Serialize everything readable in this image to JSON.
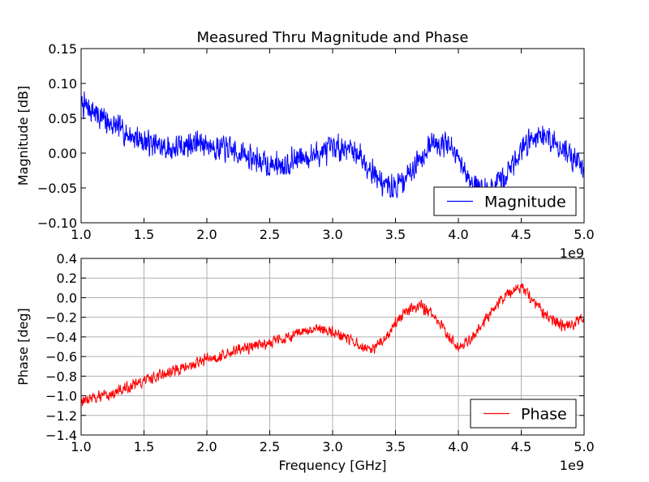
{
  "figure": {
    "title": "Measured Thru Magnitude and Phase"
  },
  "chart_data": [
    {
      "type": "line",
      "title": "Measured Thru Magnitude and Phase",
      "xlabel": "",
      "ylabel": "Magnitude [dB]",
      "xlim": [
        1.0,
        5.0
      ],
      "ylim": [
        -0.1,
        0.15
      ],
      "x_ticks": [
        "1.0",
        "1.5",
        "2.0",
        "2.5",
        "3.0",
        "3.5",
        "4.0",
        "4.5",
        "5.0"
      ],
      "y_ticks": [
        "0.15",
        "0.10",
        "0.05",
        "0.00",
        "−0.05",
        "−0.10"
      ],
      "x_exponent_label": "1e9",
      "grid": false,
      "legend": {
        "position": "lower-right",
        "entries": [
          "Magnitude"
        ]
      },
      "series": [
        {
          "name": "Magnitude",
          "color": "#0000ff",
          "noise_amplitude": 0.022,
          "points": [
            [
              1.0,
              0.07
            ],
            [
              1.1,
              0.06
            ],
            [
              1.2,
              0.045
            ],
            [
              1.3,
              0.035
            ],
            [
              1.4,
              0.025
            ],
            [
              1.5,
              0.018
            ],
            [
              1.6,
              0.01
            ],
            [
              1.7,
              0.005
            ],
            [
              1.8,
              0.01
            ],
            [
              1.9,
              0.015
            ],
            [
              2.0,
              0.013
            ],
            [
              2.1,
              0.008
            ],
            [
              2.2,
              0.003
            ],
            [
              2.3,
              -0.003
            ],
            [
              2.4,
              -0.01
            ],
            [
              2.5,
              -0.018
            ],
            [
              2.6,
              -0.015
            ],
            [
              2.7,
              -0.01
            ],
            [
              2.8,
              -0.005
            ],
            [
              2.9,
              0.0
            ],
            [
              3.0,
              0.005
            ],
            [
              3.1,
              0.01
            ],
            [
              3.2,
              0.0
            ],
            [
              3.3,
              -0.02
            ],
            [
              3.4,
              -0.045
            ],
            [
              3.5,
              -0.05
            ],
            [
              3.6,
              -0.03
            ],
            [
              3.7,
              -0.005
            ],
            [
              3.8,
              0.015
            ],
            [
              3.9,
              0.015
            ],
            [
              4.0,
              -0.01
            ],
            [
              4.1,
              -0.04
            ],
            [
              4.2,
              -0.055
            ],
            [
              4.3,
              -0.05
            ],
            [
              4.4,
              -0.025
            ],
            [
              4.5,
              0.005
            ],
            [
              4.6,
              0.025
            ],
            [
              4.7,
              0.025
            ],
            [
              4.8,
              0.01
            ],
            [
              4.9,
              -0.005
            ],
            [
              5.0,
              -0.02
            ]
          ]
        }
      ]
    },
    {
      "type": "line",
      "title": "",
      "xlabel": "Frequency [GHz]",
      "ylabel": "Phase [deg]",
      "xlim": [
        1.0,
        5.0
      ],
      "ylim": [
        -1.4,
        0.4
      ],
      "x_ticks": [
        "1.0",
        "1.5",
        "2.0",
        "2.5",
        "3.0",
        "3.5",
        "4.0",
        "4.5",
        "5.0"
      ],
      "y_ticks": [
        "0.4",
        "0.2",
        "0.0",
        "−0.2",
        "−0.4",
        "−0.6",
        "−0.8",
        "−1.0",
        "−1.2",
        "−1.4"
      ],
      "x_exponent_label": "1e9",
      "grid": true,
      "legend": {
        "position": "lower-right",
        "entries": [
          "Phase"
        ]
      },
      "series": [
        {
          "name": "Phase",
          "color": "#ff0000",
          "noise_amplitude": 0.07,
          "points": [
            [
              1.0,
              -1.05
            ],
            [
              1.1,
              -1.02
            ],
            [
              1.2,
              -1.0
            ],
            [
              1.3,
              -0.95
            ],
            [
              1.4,
              -0.9
            ],
            [
              1.5,
              -0.85
            ],
            [
              1.6,
              -0.8
            ],
            [
              1.7,
              -0.76
            ],
            [
              1.8,
              -0.72
            ],
            [
              1.9,
              -0.68
            ],
            [
              2.0,
              -0.62
            ],
            [
              2.1,
              -0.6
            ],
            [
              2.2,
              -0.55
            ],
            [
              2.3,
              -0.52
            ],
            [
              2.4,
              -0.48
            ],
            [
              2.5,
              -0.45
            ],
            [
              2.6,
              -0.42
            ],
            [
              2.7,
              -0.38
            ],
            [
              2.8,
              -0.35
            ],
            [
              2.9,
              -0.32
            ],
            [
              3.0,
              -0.35
            ],
            [
              3.1,
              -0.4
            ],
            [
              3.2,
              -0.48
            ],
            [
              3.3,
              -0.55
            ],
            [
              3.4,
              -0.45
            ],
            [
              3.5,
              -0.25
            ],
            [
              3.6,
              -0.12
            ],
            [
              3.7,
              -0.08
            ],
            [
              3.8,
              -0.18
            ],
            [
              3.9,
              -0.35
            ],
            [
              4.0,
              -0.5
            ],
            [
              4.1,
              -0.42
            ],
            [
              4.2,
              -0.25
            ],
            [
              4.3,
              -0.08
            ],
            [
              4.4,
              0.05
            ],
            [
              4.5,
              0.12
            ],
            [
              4.6,
              -0.05
            ],
            [
              4.7,
              -0.2
            ],
            [
              4.8,
              -0.28
            ],
            [
              4.9,
              -0.28
            ],
            [
              5.0,
              -0.2
            ]
          ]
        }
      ]
    }
  ]
}
